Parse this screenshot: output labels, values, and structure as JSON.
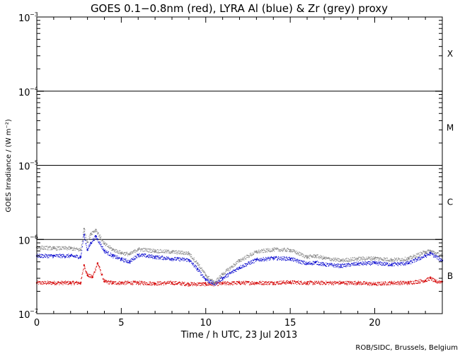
{
  "chart_data": {
    "type": "scatter",
    "title": "GOES 0.1−0.8nm (red), LYRA Al (blue) & Zr (grey) proxy",
    "xlabel": "Time / h UTC, 23 Jul 2013",
    "ylabel": "GOES Irradiance / (W m⁻²)",
    "xlim": [
      0,
      24
    ],
    "ylim": [
      1e-07,
      0.001
    ],
    "yscale": "log",
    "x_ticks": [
      0,
      5,
      10,
      15,
      20
    ],
    "y_ticks": [
      {
        "base": "10",
        "exp": "−3",
        "value": 0.001
      },
      {
        "base": "10",
        "exp": "−4",
        "value": 0.0001
      },
      {
        "base": "10",
        "exp": "−5",
        "value": 1e-05
      },
      {
        "base": "10",
        "exp": "−6",
        "value": 1e-06
      },
      {
        "base": "10",
        "exp": "−7",
        "value": 1e-07
      }
    ],
    "flare_class_thresholds": [
      1e-06,
      1e-05,
      0.0001
    ],
    "flare_classes": [
      {
        "label": "X",
        "value": 0.00032
      },
      {
        "label": "M",
        "value": 3.2e-05
      },
      {
        "label": "C",
        "value": 3.2e-06
      },
      {
        "label": "B",
        "value": 3.2e-07
      }
    ],
    "series": [
      {
        "name": "GOES 0.1-0.8nm",
        "color": "#d40000",
        "x": [
          0,
          1,
          2,
          2.6,
          2.8,
          3.0,
          3.3,
          3.6,
          4,
          4.5,
          5,
          6,
          7,
          8,
          9,
          10,
          10.5,
          11,
          12,
          13,
          14,
          15,
          16,
          17,
          18,
          19,
          20,
          21,
          22,
          23,
          23.3,
          23.6,
          24
        ],
        "values": [
          2.6e-07,
          2.6e-07,
          2.6e-07,
          2.6e-07,
          4.5e-07,
          3.3e-07,
          3.1e-07,
          4.8e-07,
          2.7e-07,
          2.6e-07,
          2.6e-07,
          2.6e-07,
          2.55e-07,
          2.6e-07,
          2.5e-07,
          2.5e-07,
          2.5e-07,
          2.55e-07,
          2.6e-07,
          2.6e-07,
          2.6e-07,
          2.65e-07,
          2.6e-07,
          2.6e-07,
          2.6e-07,
          2.6e-07,
          2.5e-07,
          2.6e-07,
          2.6e-07,
          2.8e-07,
          3e-07,
          2.7e-07,
          2.7e-07
        ]
      },
      {
        "name": "LYRA Al proxy",
        "color": "#1010d0",
        "x": [
          0,
          1,
          2,
          2.6,
          2.8,
          3.0,
          3.2,
          3.5,
          4,
          4.5,
          5,
          5.5,
          6,
          7,
          8,
          9,
          9.5,
          10,
          10.5,
          11,
          12,
          13,
          14,
          15,
          16,
          16.5,
          17,
          18,
          19,
          20,
          21,
          22,
          23,
          23.3,
          24
        ],
        "values": [
          6e-07,
          6e-07,
          6e-07,
          5.8e-07,
          1.15e-06,
          7.2e-07,
          9e-07,
          1.1e-06,
          7e-07,
          6e-07,
          5.4e-07,
          5e-07,
          6.2e-07,
          5.8e-07,
          5.5e-07,
          5.3e-07,
          4e-07,
          2.9e-07,
          2.5e-07,
          3e-07,
          4.2e-07,
          5.3e-07,
          5.6e-07,
          5.5e-07,
          4.7e-07,
          4.9e-07,
          4.6e-07,
          4.4e-07,
          4.7e-07,
          4.8e-07,
          4.6e-07,
          4.8e-07,
          6e-07,
          6.5e-07,
          5.2e-07
        ]
      },
      {
        "name": "LYRA Zr proxy",
        "color": "#8c8c8c",
        "x": [
          0,
          1,
          2,
          2.6,
          2.8,
          3.0,
          3.2,
          3.5,
          4,
          4.5,
          5,
          5.5,
          6,
          7,
          8,
          9,
          9.5,
          10,
          10.5,
          11,
          12,
          13,
          14,
          15,
          16,
          16.5,
          17,
          18,
          19,
          20,
          21,
          22,
          23,
          23.3,
          24
        ],
        "values": [
          7.8e-07,
          7.6e-07,
          7.6e-07,
          7.2e-07,
          1.4e-06,
          9.2e-07,
          1.2e-06,
          1.35e-06,
          8.7e-07,
          7.3e-07,
          6.6e-07,
          6.3e-07,
          7.4e-07,
          7e-07,
          6.8e-07,
          6.5e-07,
          4.8e-07,
          3.3e-07,
          2.6e-07,
          3.4e-07,
          5.2e-07,
          6.8e-07,
          7.3e-07,
          7.2e-07,
          5.8e-07,
          6e-07,
          5.6e-07,
          5.2e-07,
          5.5e-07,
          5.6e-07,
          5.3e-07,
          5.5e-07,
          6.8e-07,
          7e-07,
          6e-07
        ]
      }
    ]
  },
  "credit": "ROB/SIDC, Brussels, Belgium"
}
